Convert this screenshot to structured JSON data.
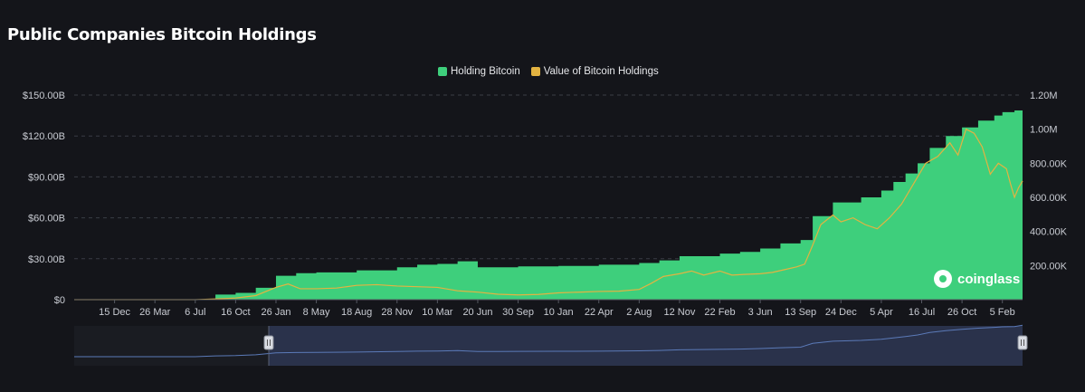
{
  "title": "Public Companies Bitcoin Holdings",
  "watermark": "coinglass",
  "colors": {
    "holding": "#3ecf7c",
    "value": "#e3b341",
    "grid": "#3a3d45",
    "nav_fill": "#2c3550",
    "nav_line": "#5b7ab8"
  },
  "chart_data": {
    "type": "area",
    "title": "Public Companies Bitcoin Holdings",
    "legend": [
      "Holding Bitcoin",
      "Value of Bitcoin Holdings"
    ],
    "legend_position": "top-center",
    "x_labels": [
      "15 Dec",
      "26 Mar",
      "6 Jul",
      "16 Oct",
      "26 Jan",
      "8 May",
      "18 Aug",
      "28 Nov",
      "10 Mar",
      "20 Jun",
      "30 Sep",
      "10 Jan",
      "22 Apr",
      "2 Aug",
      "12 Nov",
      "22 Feb",
      "3 Jun",
      "13 Sep",
      "24 Dec",
      "5 Apr",
      "16 Jul",
      "26 Oct",
      "5 Feb"
    ],
    "y_left_ticks": [
      "$0",
      "$30.00B",
      "$60.00B",
      "$90.00B",
      "$120.00B",
      "$150.00B"
    ],
    "y_left_range": [
      0,
      150
    ],
    "y_right_ticks": [
      "200.00K",
      "400.00K",
      "600.00K",
      "800.00K",
      "1.00M",
      "1.20M"
    ],
    "y_right_range": [
      0,
      1200000
    ],
    "x_range": [
      0,
      23.5
    ],
    "grid": true,
    "series": [
      {
        "name": "Holding Bitcoin",
        "axis": "right",
        "kind": "step-area",
        "points": [
          [
            0,
            2000
          ],
          [
            1,
            2000
          ],
          [
            2,
            2000
          ],
          [
            3,
            2000
          ],
          [
            3.5,
            30000
          ],
          [
            4,
            40000
          ],
          [
            4.5,
            70000
          ],
          [
            5,
            140000
          ],
          [
            5.5,
            155000
          ],
          [
            6,
            160000
          ],
          [
            7,
            172000
          ],
          [
            8,
            190000
          ],
          [
            8.5,
            205000
          ],
          [
            9,
            210000
          ],
          [
            9.5,
            225000
          ],
          [
            10,
            190000
          ],
          [
            10.5,
            190000
          ],
          [
            11,
            195000
          ],
          [
            12,
            198000
          ],
          [
            13,
            205000
          ],
          [
            14,
            215000
          ],
          [
            14.5,
            230000
          ],
          [
            15,
            255000
          ],
          [
            16,
            270000
          ],
          [
            16.5,
            280000
          ],
          [
            17,
            300000
          ],
          [
            17.5,
            330000
          ],
          [
            18,
            350000
          ],
          [
            18.3,
            490000
          ],
          [
            18.8,
            570000
          ],
          [
            19.5,
            600000
          ],
          [
            20,
            640000
          ],
          [
            20.3,
            690000
          ],
          [
            20.6,
            740000
          ],
          [
            20.9,
            800000
          ],
          [
            21.2,
            890000
          ],
          [
            21.6,
            960000
          ],
          [
            22,
            1010000
          ],
          [
            22.4,
            1050000
          ],
          [
            22.8,
            1080000
          ],
          [
            23,
            1100000
          ],
          [
            23.3,
            1110000
          ],
          [
            23.5,
            1160000
          ]
        ]
      },
      {
        "name": "Value of Bitcoin Holdings",
        "axis": "left",
        "kind": "line",
        "points": [
          [
            0,
            0
          ],
          [
            3,
            0
          ],
          [
            3.5,
            0.5
          ],
          [
            4,
            1.2
          ],
          [
            4.5,
            3
          ],
          [
            5,
            9
          ],
          [
            5.3,
            11.5
          ],
          [
            5.6,
            8
          ],
          [
            6,
            8
          ],
          [
            6.5,
            8.5
          ],
          [
            7,
            10.5
          ],
          [
            7.5,
            11
          ],
          [
            8,
            10
          ],
          [
            8.5,
            9.5
          ],
          [
            9,
            9
          ],
          [
            9.5,
            6.5
          ],
          [
            10,
            5.5
          ],
          [
            10.5,
            4
          ],
          [
            11,
            3.5
          ],
          [
            11.5,
            3.8
          ],
          [
            12,
            5
          ],
          [
            12.5,
            5.5
          ],
          [
            13,
            6
          ],
          [
            13.5,
            6.2
          ],
          [
            14,
            7.5
          ],
          [
            14.3,
            12
          ],
          [
            14.6,
            17
          ],
          [
            15,
            19
          ],
          [
            15.3,
            21
          ],
          [
            15.6,
            18
          ],
          [
            16,
            21
          ],
          [
            16.3,
            18
          ],
          [
            16.6,
            18.5
          ],
          [
            17,
            19
          ],
          [
            17.3,
            20
          ],
          [
            17.6,
            22
          ],
          [
            17.9,
            24
          ],
          [
            18.1,
            26
          ],
          [
            18.3,
            40
          ],
          [
            18.5,
            55
          ],
          [
            18.8,
            62
          ],
          [
            19,
            57
          ],
          [
            19.3,
            60
          ],
          [
            19.6,
            55
          ],
          [
            19.9,
            52
          ],
          [
            20.2,
            60
          ],
          [
            20.5,
            70
          ],
          [
            20.8,
            85
          ],
          [
            21.1,
            100
          ],
          [
            21.4,
            105
          ],
          [
            21.7,
            115
          ],
          [
            21.9,
            106
          ],
          [
            22.1,
            125
          ],
          [
            22.3,
            122
          ],
          [
            22.5,
            112
          ],
          [
            22.7,
            92
          ],
          [
            22.9,
            100
          ],
          [
            23.1,
            96
          ],
          [
            23.2,
            85
          ],
          [
            23.3,
            75
          ],
          [
            23.4,
            82
          ],
          [
            23.5,
            87
          ]
        ]
      }
    ]
  }
}
